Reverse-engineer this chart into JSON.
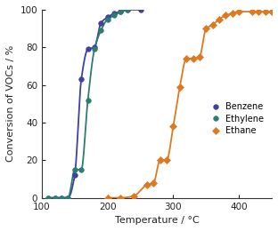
{
  "title": "",
  "xlabel": "Temperature / °C",
  "ylabel": "Conversion of VOCs / %",
  "xlim": [
    100,
    450
  ],
  "ylim": [
    0,
    100
  ],
  "xticks": [
    100,
    200,
    300,
    400
  ],
  "yticks": [
    0,
    20,
    40,
    60,
    80,
    100
  ],
  "benzene": {
    "T": [
      110,
      120,
      130,
      140,
      150,
      160,
      170,
      180,
      190,
      200,
      210,
      220,
      230,
      250
    ],
    "C": [
      0,
      0,
      0,
      0,
      12,
      63,
      79,
      80,
      93,
      96,
      98,
      99,
      100,
      100
    ],
    "color": "#4040a0",
    "marker": "o",
    "label": "Benzene"
  },
  "ethylene": {
    "T": [
      110,
      120,
      130,
      140,
      150,
      160,
      170,
      180,
      190,
      200,
      210,
      220,
      230
    ],
    "C": [
      0,
      0,
      0,
      0,
      15,
      15,
      52,
      79,
      89,
      95,
      97,
      99,
      100
    ],
    "color": "#2d7d6e",
    "marker": "o",
    "label": "Ethylene"
  },
  "ethane": {
    "T": [
      200,
      220,
      240,
      260,
      270,
      280,
      290,
      300,
      310,
      320,
      330,
      340,
      350,
      360,
      370,
      380,
      390,
      400,
      420,
      430,
      440,
      450
    ],
    "C": [
      0,
      0,
      1,
      7,
      8,
      20,
      20,
      38,
      59,
      74,
      74,
      75,
      90,
      92,
      95,
      97,
      98,
      99,
      99,
      99,
      99,
      99
    ],
    "color": "#e07820",
    "marker": "D",
    "label": "Ethane"
  },
  "background_color": "#ffffff",
  "spine_color": "#333333"
}
